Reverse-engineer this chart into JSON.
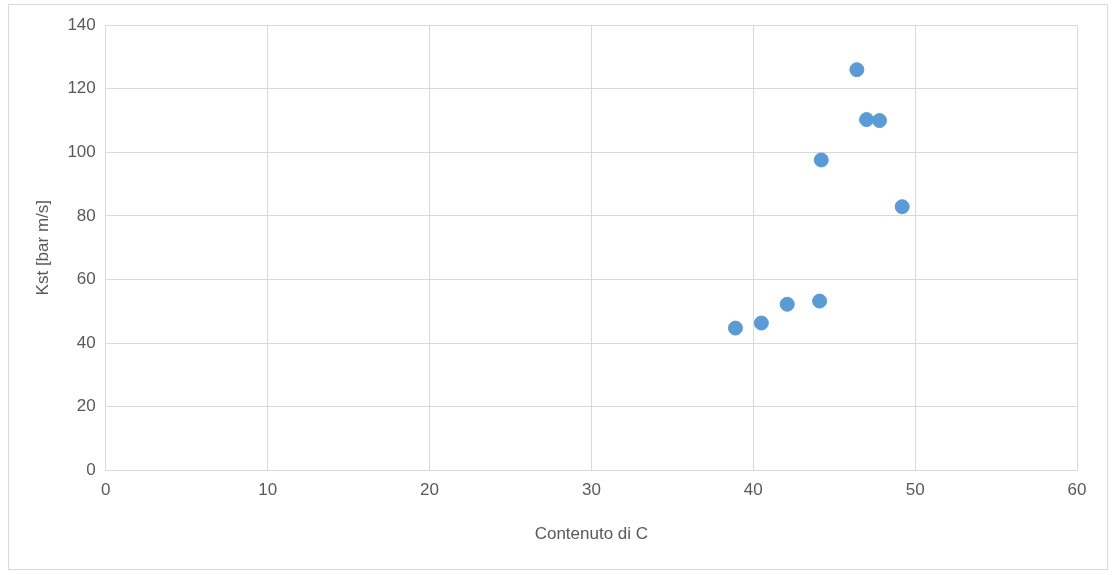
{
  "chart_data": {
    "type": "scatter",
    "xlabel": "Contenuto di C",
    "ylabel": "Kst [bar m/s]",
    "x": [
      38.9,
      40.5,
      42.1,
      44.1,
      44.2,
      46.4,
      47.0,
      47.8,
      49.2
    ],
    "values": [
      44.7,
      46.3,
      52.2,
      53.2,
      97.6,
      126,
      110.3,
      110,
      82.9
    ],
    "color": "#5b9bd5",
    "marker": "circle",
    "xlim": [
      0,
      60
    ],
    "xticks": [
      0,
      10,
      20,
      30,
      40,
      50,
      60
    ],
    "ylim": [
      0,
      140
    ],
    "yticks": [
      0,
      20,
      40,
      60,
      80,
      100,
      120,
      140
    ],
    "grid": true,
    "legend": false
  }
}
